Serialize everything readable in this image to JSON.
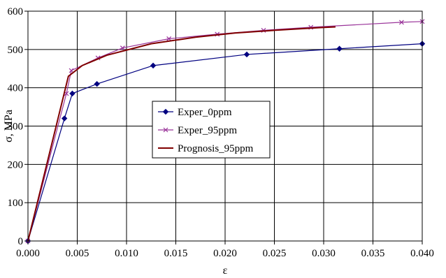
{
  "chart_data": {
    "type": "line",
    "title": "",
    "xlabel": "ε",
    "ylabel": "σ, MPa",
    "xlim": [
      0.0,
      0.04
    ],
    "ylim": [
      0,
      600
    ],
    "xticks": [
      0.0,
      0.005,
      0.01,
      0.015,
      0.02,
      0.025,
      0.03,
      0.035,
      0.04
    ],
    "xtick_labels": [
      "0.000",
      "0.005",
      "0.010",
      "0.015",
      "0.020",
      "0.025",
      "0.030",
      "0.035",
      "0.040"
    ],
    "yticks": [
      0,
      100,
      200,
      300,
      400,
      500,
      600
    ],
    "ytick_labels": [
      "0",
      "100",
      "200",
      "300",
      "400",
      "500",
      "600"
    ],
    "grid": true,
    "legend": "center",
    "series": [
      {
        "name": "Exper_0ppm",
        "color": "#000080",
        "marker": "diamond",
        "x": [
          0.0,
          0.0037,
          0.0045,
          0.007,
          0.0127,
          0.0222,
          0.0316,
          0.04
        ],
        "y": [
          0,
          320,
          385,
          410,
          458,
          487,
          502,
          515
        ]
      },
      {
        "name": "Exper_95ppm",
        "color": "#993399",
        "marker": "x",
        "x": [
          0.0,
          0.0039,
          0.0044,
          0.0071,
          0.0096,
          0.0143,
          0.0192,
          0.0239,
          0.0287,
          0.0379,
          0.04
        ],
        "y": [
          0,
          385,
          445,
          478,
          504,
          528,
          540,
          550,
          558,
          571,
          573
        ]
      },
      {
        "name": "Prognosis_95ppm",
        "color": "#800000",
        "marker": "none",
        "x": [
          0.0,
          0.0041,
          0.0055,
          0.008,
          0.0125,
          0.017,
          0.021,
          0.025,
          0.0295,
          0.0312
        ],
        "y": [
          0,
          430,
          458,
          485,
          515,
          532,
          543,
          550,
          557,
          559
        ]
      }
    ]
  }
}
